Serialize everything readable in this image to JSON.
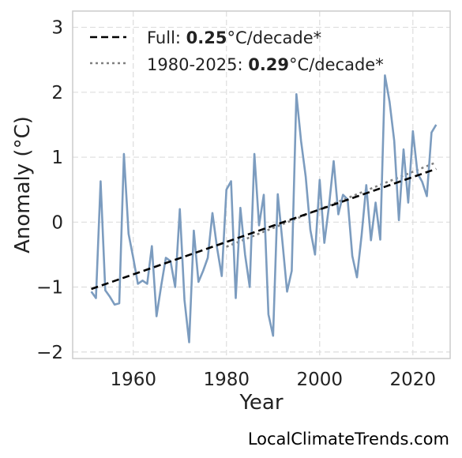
{
  "chart_data": {
    "type": "line",
    "xlabel": "Year",
    "ylabel": "Anomaly (°C)",
    "xlim": [
      1947,
      2028
    ],
    "ylim": [
      -2.1,
      3.25
    ],
    "xticks": [
      1960,
      1980,
      2000,
      2020
    ],
    "yticks": [
      -2,
      -1,
      0,
      1,
      2,
      3
    ],
    "ytick_labels": [
      "−2",
      "−1",
      "0",
      "1",
      "2",
      "3"
    ],
    "grid": true,
    "legend_position": "top-left",
    "series": [
      {
        "kind": "observed",
        "color": "#7c9cbf",
        "x": [
          1951,
          1952,
          1953,
          1954,
          1955,
          1956,
          1957,
          1958,
          1959,
          1960,
          1961,
          1962,
          1963,
          1964,
          1965,
          1966,
          1967,
          1968,
          1969,
          1970,
          1971,
          1972,
          1973,
          1974,
          1975,
          1976,
          1977,
          1978,
          1979,
          1980,
          1981,
          1982,
          1983,
          1984,
          1985,
          1986,
          1987,
          1988,
          1989,
          1990,
          1991,
          1992,
          1993,
          1994,
          1995,
          1996,
          1997,
          1998,
          1999,
          2000,
          2001,
          2002,
          2003,
          2004,
          2005,
          2006,
          2007,
          2008,
          2009,
          2010,
          2011,
          2012,
          2013,
          2014,
          2015,
          2016,
          2017,
          2018,
          2019,
          2020,
          2021,
          2022,
          2023,
          2024,
          2025
        ],
        "y": [
          -1.07,
          -1.17,
          0.63,
          -1.05,
          -1.15,
          -1.27,
          -1.25,
          1.05,
          -0.18,
          -0.55,
          -0.95,
          -0.9,
          -0.95,
          -0.37,
          -1.45,
          -0.98,
          -0.55,
          -0.6,
          -1.0,
          0.2,
          -1.2,
          -1.85,
          -0.13,
          -0.92,
          -0.75,
          -0.55,
          0.14,
          -0.4,
          -0.83,
          0.5,
          0.63,
          -1.17,
          0.22,
          -0.5,
          -1.0,
          1.05,
          -0.05,
          0.42,
          -1.42,
          -1.75,
          0.43,
          -0.3,
          -1.07,
          -0.75,
          1.97,
          1.25,
          0.7,
          -0.12,
          -0.5,
          0.65,
          -0.32,
          0.25,
          0.94,
          0.12,
          0.42,
          0.35,
          -0.52,
          -0.85,
          -0.2,
          0.57,
          -0.28,
          0.3,
          -0.27,
          2.26,
          1.85,
          1.25,
          0.03,
          1.12,
          0.3,
          1.4,
          0.75,
          0.62,
          0.4,
          1.38,
          1.5
        ]
      },
      {
        "kind": "trend",
        "name_prefix": "Full: ",
        "name_value": "0.25",
        "name_suffix": "°C/decade*",
        "style": "dashed",
        "color": "#000000",
        "x": [
          1951,
          2025
        ],
        "y": [
          -1.03,
          0.82
        ]
      },
      {
        "kind": "trend",
        "name_prefix": "1980-2025: ",
        "name_value": "0.29",
        "name_suffix": "°C/decade*",
        "style": "dotted",
        "color": "#808080",
        "x": [
          1980,
          2025
        ],
        "y": [
          -0.38,
          0.92
        ]
      }
    ]
  },
  "watermark": "LocalClimateTrends.com"
}
